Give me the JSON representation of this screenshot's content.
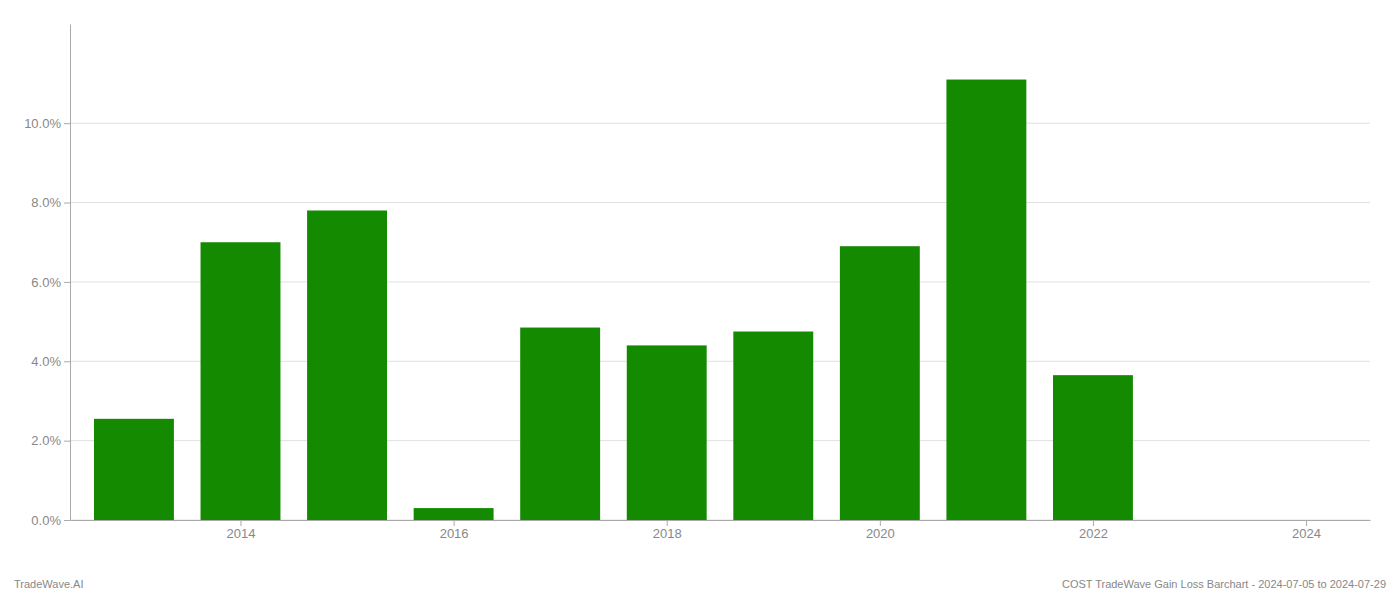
{
  "chart_data": {
    "type": "bar",
    "x": [
      2013,
      2014,
      2015,
      2016,
      2017,
      2018,
      2019,
      2020,
      2021,
      2022,
      2023
    ],
    "values": [
      0.0255,
      0.07,
      0.078,
      0.003,
      0.0485,
      0.044,
      0.0475,
      0.069,
      0.111,
      0.0365,
      0.0
    ],
    "color": "#138a00",
    "xlim": [
      2012.4,
      2024.6
    ],
    "xticks": [
      2014,
      2016,
      2018,
      2020,
      2022,
      2024
    ],
    "ylim": [
      0.0,
      0.125
    ],
    "yticks": [
      {
        "value": 0.0,
        "label": "0.0%"
      },
      {
        "value": 0.02,
        "label": "2.0%"
      },
      {
        "value": 0.04,
        "label": "4.0%"
      },
      {
        "value": 0.06,
        "label": "6.0%"
      },
      {
        "value": 0.08,
        "label": "8.0%"
      },
      {
        "value": 0.1,
        "label": "10.0%"
      }
    ],
    "grid": true,
    "annotations": [
      "TradeWave.AI",
      "COST TradeWave Gain Loss Barchart - 2024-07-05 to 2024-07-29"
    ]
  }
}
